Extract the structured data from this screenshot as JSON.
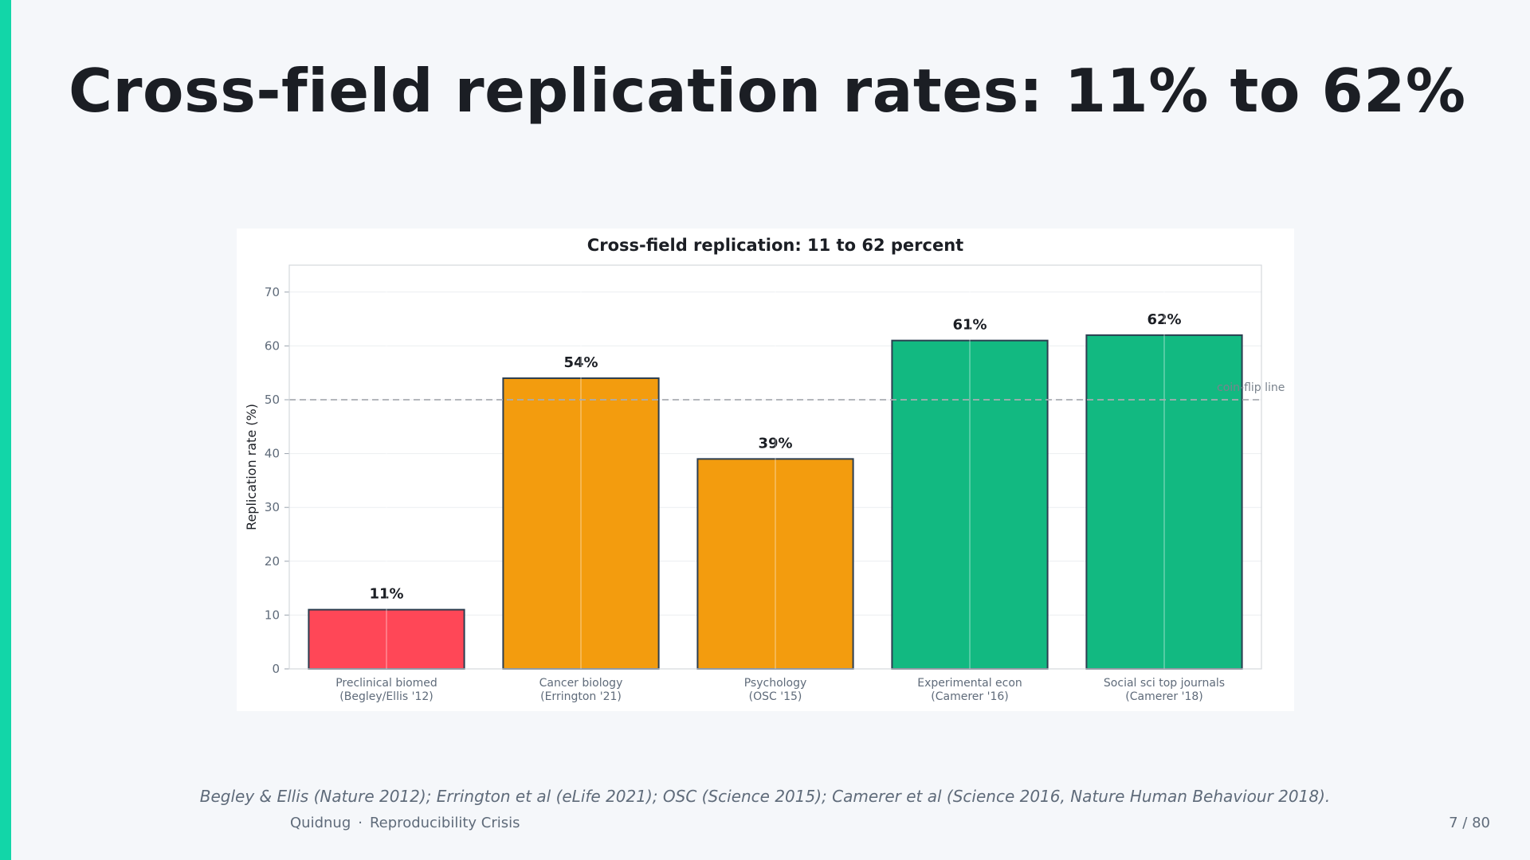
{
  "slide": {
    "title": "Cross-field replication rates: 11% to 62%",
    "caption": "Begley & Ellis (Nature 2012); Errington et al (eLife 2021); OSC (Science 2015); Camerer et al (Science 2016, Nature Human Behaviour 2018).",
    "footer_brand": "Quidnug",
    "footer_separator": "·",
    "footer_deck": "Reproducibility Crisis",
    "page_number": "7 / 80"
  },
  "colors": {
    "accent": "#12d6a8",
    "red": "#ff4757",
    "orange": "#f39c0e",
    "green": "#12b981"
  },
  "chart_data": {
    "type": "bar",
    "title": "Cross-field replication: 11 to 62 percent",
    "xlabel": "",
    "ylabel": "Replication rate (%)",
    "ylim": [
      0,
      75
    ],
    "yticks": [
      0,
      10,
      20,
      30,
      40,
      50,
      60,
      70
    ],
    "grid": true,
    "categories": [
      [
        "Preclinical biomed",
        "(Begley/Ellis '12)"
      ],
      [
        "Cancer biology",
        "(Errington '21)"
      ],
      [
        "Psychology",
        "(OSC '15)"
      ],
      [
        "Experimental econ",
        "(Camerer '16)"
      ],
      [
        "Social sci top journals",
        "(Camerer '18)"
      ]
    ],
    "values": [
      11,
      54,
      39,
      61,
      62
    ],
    "value_labels": [
      "11%",
      "54%",
      "39%",
      "61%",
      "62%"
    ],
    "bar_colors": [
      "#ff4757",
      "#f39c0e",
      "#f39c0e",
      "#12b981",
      "#12b981"
    ],
    "reference_line": {
      "y": 50,
      "label": "coin-flip line",
      "style": "dashed"
    }
  }
}
